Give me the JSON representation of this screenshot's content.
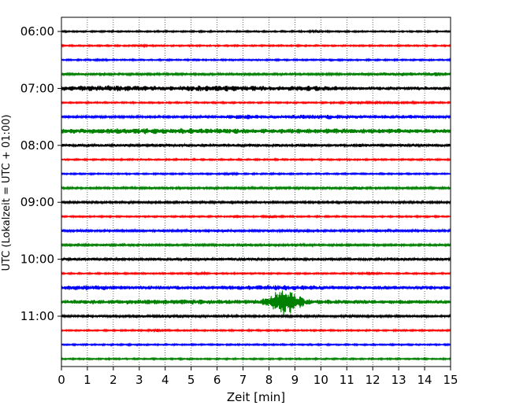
{
  "chart_data": {
    "type": "line",
    "title": "",
    "xlabel": "Zeit  [min]",
    "ylabel": "UTC (Lokalzeit = UTC + 01:00)",
    "xlim": [
      0,
      15
    ],
    "x_ticks": [
      "0",
      "1",
      "2",
      "3",
      "4",
      "5",
      "6",
      "7",
      "8",
      "9",
      "10",
      "11",
      "12",
      "13",
      "14",
      "15"
    ],
    "y_ticks": [
      "06:00",
      "07:00",
      "08:00",
      "09:00",
      "10:00",
      "11:00"
    ],
    "grid": "vertical dotted",
    "trace_colors": [
      "#000000",
      "#ff0000",
      "#0000ff",
      "#008000"
    ],
    "traces": [
      {
        "start": "06:00",
        "color": "#000000",
        "amplitude": 1.0,
        "bursts": [
          {
            "t": 9.8,
            "amp": 2.0,
            "width": 0.2
          }
        ]
      },
      {
        "start": "06:15",
        "color": "#ff0000",
        "amplitude": 1.0,
        "bursts": [
          {
            "t": 3.0,
            "amp": 1.5,
            "width": 0.3
          }
        ]
      },
      {
        "start": "06:30",
        "color": "#0000ff",
        "amplitude": 1.0,
        "bursts": [
          {
            "t": 1.5,
            "amp": 1.5,
            "width": 0.2
          }
        ]
      },
      {
        "start": "06:45",
        "color": "#008000",
        "amplitude": 1.5,
        "bursts": [
          {
            "t": 13.0,
            "amp": 2.5,
            "width": 1.0
          },
          {
            "t": 14.5,
            "amp": 3.0,
            "width": 0.4
          }
        ]
      },
      {
        "start": "07:00",
        "color": "#000000",
        "amplitude": 2.5,
        "bursts": [
          {
            "t": 2.0,
            "amp": 4.0,
            "width": 2.0
          },
          {
            "t": 6.0,
            "amp": 4.0,
            "width": 2.0
          },
          {
            "t": 9.5,
            "amp": 3.5,
            "width": 1.5
          }
        ]
      },
      {
        "start": "07:15",
        "color": "#ff0000",
        "amplitude": 1.0,
        "bursts": [
          {
            "t": 12.5,
            "amp": 1.5,
            "width": 1.5
          }
        ]
      },
      {
        "start": "07:30",
        "color": "#0000ff",
        "amplitude": 1.5,
        "bursts": [
          {
            "t": 7.0,
            "amp": 3.0,
            "width": 1.0
          },
          {
            "t": 10.0,
            "amp": 3.0,
            "width": 2.0
          },
          {
            "t": 13.0,
            "amp": 2.5,
            "width": 1.5
          }
        ]
      },
      {
        "start": "07:45",
        "color": "#008000",
        "amplitude": 3.0,
        "bursts": [
          {
            "t": 4.0,
            "amp": 4.0,
            "width": 3.0
          },
          {
            "t": 10.0,
            "amp": 3.5,
            "width": 3.0
          }
        ]
      },
      {
        "start": "08:00",
        "color": "#000000",
        "amplitude": 2.0,
        "bursts": []
      },
      {
        "start": "08:15",
        "color": "#ff0000",
        "amplitude": 1.0,
        "bursts": []
      },
      {
        "start": "08:30",
        "color": "#0000ff",
        "amplitude": 1.0,
        "bursts": [
          {
            "t": 6.5,
            "amp": 2.0,
            "width": 0.2
          }
        ]
      },
      {
        "start": "08:45",
        "color": "#008000",
        "amplitude": 1.5,
        "bursts": [
          {
            "t": 11.3,
            "amp": 3.0,
            "width": 0.2
          }
        ]
      },
      {
        "start": "09:00",
        "color": "#000000",
        "amplitude": 1.5,
        "bursts": []
      },
      {
        "start": "09:15",
        "color": "#ff0000",
        "amplitude": 1.0,
        "bursts": [
          {
            "t": 6.8,
            "amp": 2.0,
            "width": 0.2
          },
          {
            "t": 8.1,
            "amp": 2.0,
            "width": 0.2
          }
        ]
      },
      {
        "start": "09:30",
        "color": "#0000ff",
        "amplitude": 1.5,
        "bursts": []
      },
      {
        "start": "09:45",
        "color": "#008000",
        "amplitude": 1.5,
        "bursts": []
      },
      {
        "start": "10:00",
        "color": "#000000",
        "amplitude": 2.0,
        "bursts": []
      },
      {
        "start": "10:15",
        "color": "#ff0000",
        "amplitude": 1.0,
        "bursts": [
          {
            "t": 5.4,
            "amp": 2.0,
            "width": 0.2
          },
          {
            "t": 11.9,
            "amp": 2.0,
            "width": 0.2
          }
        ]
      },
      {
        "start": "10:30",
        "color": "#0000ff",
        "amplitude": 2.5,
        "bursts": [
          {
            "t": 1.0,
            "amp": 3.5,
            "width": 1.0
          },
          {
            "t": 8.5,
            "amp": 3.5,
            "width": 1.5
          }
        ]
      },
      {
        "start": "10:45",
        "color": "#008000",
        "amplitude": 2.5,
        "bursts": [
          {
            "t": 8.6,
            "amp": 18.0,
            "width": 0.6
          },
          {
            "t": 10.0,
            "amp": 3.0,
            "width": 2.0
          },
          {
            "t": 4.0,
            "amp": 3.5,
            "width": 3.0
          }
        ]
      },
      {
        "start": "11:00",
        "color": "#000000",
        "amplitude": 1.5,
        "bursts": [
          {
            "t": 4.0,
            "amp": 2.0,
            "width": 1.5
          }
        ]
      },
      {
        "start": "11:15",
        "color": "#ff0000",
        "amplitude": 1.0,
        "bursts": [
          {
            "t": 3.7,
            "amp": 2.5,
            "width": 0.3
          }
        ]
      },
      {
        "start": "11:30",
        "color": "#0000ff",
        "amplitude": 1.0,
        "bursts": []
      },
      {
        "start": "11:45",
        "color": "#008000",
        "amplitude": 1.0,
        "bursts": []
      }
    ]
  }
}
